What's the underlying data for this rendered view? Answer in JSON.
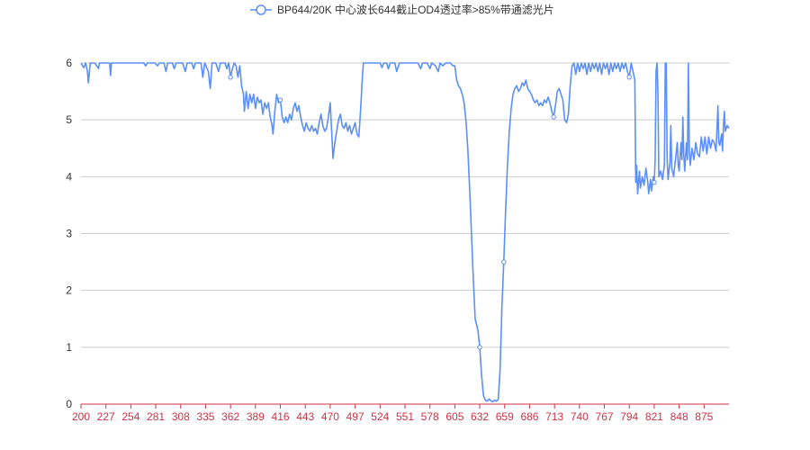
{
  "chart_data": {
    "type": "line",
    "title": "",
    "xlabel": "",
    "ylabel": "",
    "legend": {
      "position": "top-center"
    },
    "grid": {
      "y": true,
      "x": false
    },
    "xlim": [
      200,
      902
    ],
    "ylim": [
      0,
      6
    ],
    "x_ticks": [
      200,
      227,
      254,
      281,
      308,
      335,
      362,
      389,
      416,
      443,
      470,
      497,
      524,
      551,
      578,
      605,
      632,
      659,
      686,
      713,
      740,
      767,
      794,
      821,
      848,
      875
    ],
    "y_ticks": [
      0,
      1,
      2,
      3,
      4,
      5,
      6
    ],
    "colors": {
      "series": "#5b8ff9",
      "x_axis": "#cc3344",
      "grid": "#cccccc",
      "text": "#333333"
    },
    "series": [
      {
        "name": "BP644/20K 中心波长644截止OD4透过率>85%带通滤光片",
        "marker_x": [
          362,
          416,
          632,
          659,
          713,
          794,
          821
        ],
        "points": [
          [
            200,
            6.0
          ],
          [
            203,
            5.92
          ],
          [
            205,
            6.0
          ],
          [
            207,
            5.85
          ],
          [
            208,
            5.65
          ],
          [
            210,
            6.0
          ],
          [
            215,
            6.0
          ],
          [
            219,
            5.9
          ],
          [
            220,
            6.0
          ],
          [
            225,
            6.0
          ],
          [
            231,
            6.0
          ],
          [
            232,
            5.78
          ],
          [
            233,
            6.0
          ],
          [
            245,
            6.0
          ],
          [
            268,
            6.0
          ],
          [
            270,
            5.95
          ],
          [
            272,
            6.0
          ],
          [
            280,
            6.0
          ],
          [
            283,
            5.95
          ],
          [
            285,
            6.0
          ],
          [
            290,
            6.0
          ],
          [
            292,
            5.85
          ],
          [
            294,
            6.0
          ],
          [
            299,
            6.0
          ],
          [
            301,
            5.9
          ],
          [
            303,
            6.0
          ],
          [
            310,
            6.0
          ],
          [
            313,
            5.85
          ],
          [
            315,
            6.0
          ],
          [
            320,
            6.0
          ],
          [
            322,
            5.9
          ],
          [
            324,
            6.0
          ],
          [
            330,
            6.0
          ],
          [
            332,
            5.75
          ],
          [
            334,
            6.0
          ],
          [
            338,
            5.85
          ],
          [
            340,
            5.55
          ],
          [
            342,
            6.0
          ],
          [
            346,
            6.0
          ],
          [
            349,
            5.85
          ],
          [
            351,
            6.0
          ],
          [
            356,
            6.0
          ],
          [
            358,
            5.9
          ],
          [
            360,
            6.0
          ],
          [
            362,
            5.75
          ],
          [
            364,
            5.9
          ],
          [
            366,
            6.0
          ],
          [
            368,
            5.95
          ],
          [
            370,
            5.75
          ],
          [
            372,
            5.95
          ],
          [
            374,
            5.6
          ],
          [
            376,
            5.45
          ],
          [
            377,
            5.15
          ],
          [
            379,
            5.5
          ],
          [
            381,
            5.2
          ],
          [
            383,
            5.45
          ],
          [
            385,
            5.3
          ],
          [
            387,
            5.45
          ],
          [
            389,
            5.2
          ],
          [
            391,
            5.4
          ],
          [
            393,
            5.3
          ],
          [
            395,
            5.35
          ],
          [
            397,
            5.1
          ],
          [
            399,
            5.3
          ],
          [
            401,
            5.2
          ],
          [
            403,
            5.3
          ],
          [
            405,
            5.05
          ],
          [
            407,
            4.9
          ],
          [
            408,
            4.75
          ],
          [
            410,
            5.15
          ],
          [
            412,
            5.45
          ],
          [
            414,
            5.3
          ],
          [
            416,
            5.35
          ],
          [
            418,
            5.05
          ],
          [
            420,
            4.95
          ],
          [
            422,
            5.05
          ],
          [
            424,
            4.95
          ],
          [
            426,
            5.1
          ],
          [
            428,
            5.0
          ],
          [
            430,
            5.2
          ],
          [
            432,
            5.3
          ],
          [
            434,
            5.15
          ],
          [
            436,
            5.25
          ],
          [
            438,
            5.05
          ],
          [
            440,
            4.9
          ],
          [
            442,
            4.8
          ],
          [
            444,
            4.95
          ],
          [
            446,
            4.85
          ],
          [
            448,
            4.8
          ],
          [
            450,
            4.9
          ],
          [
            452,
            4.8
          ],
          [
            454,
            4.85
          ],
          [
            456,
            4.75
          ],
          [
            458,
            4.95
          ],
          [
            460,
            5.1
          ],
          [
            462,
            4.9
          ],
          [
            464,
            4.8
          ],
          [
            466,
            4.85
          ],
          [
            468,
            5.05
          ],
          [
            470,
            5.3
          ],
          [
            472,
            4.65
          ],
          [
            473,
            4.32
          ],
          [
            475,
            4.6
          ],
          [
            477,
            4.8
          ],
          [
            479,
            5.0
          ],
          [
            481,
            5.1
          ],
          [
            483,
            4.9
          ],
          [
            485,
            4.85
          ],
          [
            487,
            4.95
          ],
          [
            489,
            4.8
          ],
          [
            491,
            4.9
          ],
          [
            493,
            4.75
          ],
          [
            495,
            4.85
          ],
          [
            497,
            4.95
          ],
          [
            499,
            4.75
          ],
          [
            501,
            4.7
          ],
          [
            503,
            5.2
          ],
          [
            505,
            5.8
          ],
          [
            506,
            6.0
          ],
          [
            515,
            6.0
          ],
          [
            520,
            6.0
          ],
          [
            524,
            6.0
          ],
          [
            526,
            5.92
          ],
          [
            528,
            6.0
          ],
          [
            531,
            6.0
          ],
          [
            533,
            5.9
          ],
          [
            535,
            6.0
          ],
          [
            540,
            6.0
          ],
          [
            542,
            5.85
          ],
          [
            545,
            6.0
          ],
          [
            555,
            6.0
          ],
          [
            565,
            6.0
          ],
          [
            568,
            5.9
          ],
          [
            570,
            6.0
          ],
          [
            575,
            6.0
          ],
          [
            578,
            5.9
          ],
          [
            580,
            6.0
          ],
          [
            584,
            5.95
          ],
          [
            587,
            5.85
          ],
          [
            589,
            6.0
          ],
          [
            592,
            5.95
          ],
          [
            595,
            6.0
          ],
          [
            600,
            6.0
          ],
          [
            603,
            5.95
          ],
          [
            605,
            5.95
          ],
          [
            607,
            5.7
          ],
          [
            609,
            5.6
          ],
          [
            611,
            5.55
          ],
          [
            613,
            5.45
          ],
          [
            615,
            5.3
          ],
          [
            617,
            5.0
          ],
          [
            619,
            4.5
          ],
          [
            621,
            3.8
          ],
          [
            623,
            3.0
          ],
          [
            625,
            2.2
          ],
          [
            627,
            1.5
          ],
          [
            630,
            1.3
          ],
          [
            632,
            1.0
          ],
          [
            634,
            0.5
          ],
          [
            636,
            0.15
          ],
          [
            638,
            0.07
          ],
          [
            640,
            0.05
          ],
          [
            642,
            0.09
          ],
          [
            644,
            0.06
          ],
          [
            646,
            0.04
          ],
          [
            648,
            0.07
          ],
          [
            650,
            0.05
          ],
          [
            652,
            0.08
          ],
          [
            654,
            0.6
          ],
          [
            656,
            1.7
          ],
          [
            658,
            2.5
          ],
          [
            660,
            3.4
          ],
          [
            662,
            4.2
          ],
          [
            664,
            4.8
          ],
          [
            666,
            5.2
          ],
          [
            668,
            5.45
          ],
          [
            670,
            5.55
          ],
          [
            672,
            5.6
          ],
          [
            674,
            5.5
          ],
          [
            676,
            5.55
          ],
          [
            678,
            5.65
          ],
          [
            680,
            5.6
          ],
          [
            682,
            5.7
          ],
          [
            684,
            5.55
          ],
          [
            686,
            5.5
          ],
          [
            688,
            5.45
          ],
          [
            690,
            5.35
          ],
          [
            692,
            5.3
          ],
          [
            694,
            5.35
          ],
          [
            696,
            5.25
          ],
          [
            698,
            5.3
          ],
          [
            700,
            5.25
          ],
          [
            702,
            5.35
          ],
          [
            704,
            5.3
          ],
          [
            706,
            5.4
          ],
          [
            708,
            5.3
          ],
          [
            710,
            5.15
          ],
          [
            712,
            5.05
          ],
          [
            714,
            5.25
          ],
          [
            716,
            5.5
          ],
          [
            718,
            5.55
          ],
          [
            720,
            5.45
          ],
          [
            722,
            5.35
          ],
          [
            724,
            5.0
          ],
          [
            726,
            4.95
          ],
          [
            728,
            5.1
          ],
          [
            730,
            5.6
          ],
          [
            732,
            5.95
          ],
          [
            734,
            6.0
          ],
          [
            736,
            5.8
          ],
          [
            738,
            6.0
          ],
          [
            740,
            5.85
          ],
          [
            742,
            6.0
          ],
          [
            744,
            5.9
          ],
          [
            746,
            6.0
          ],
          [
            748,
            5.8
          ],
          [
            750,
            6.0
          ],
          [
            752,
            5.85
          ],
          [
            754,
            6.0
          ],
          [
            756,
            5.9
          ],
          [
            758,
            6.0
          ],
          [
            760,
            5.85
          ],
          [
            762,
            6.0
          ],
          [
            764,
            5.8
          ],
          [
            766,
            6.0
          ],
          [
            768,
            5.9
          ],
          [
            770,
            6.0
          ],
          [
            772,
            5.8
          ],
          [
            774,
            6.0
          ],
          [
            776,
            5.85
          ],
          [
            778,
            6.0
          ],
          [
            780,
            5.9
          ],
          [
            782,
            6.0
          ],
          [
            784,
            5.85
          ],
          [
            786,
            6.0
          ],
          [
            788,
            5.9
          ],
          [
            790,
            6.0
          ],
          [
            792,
            5.85
          ],
          [
            794,
            5.75
          ],
          [
            796,
            6.0
          ],
          [
            798,
            5.85
          ],
          [
            800,
            5.7
          ],
          [
            801,
            3.9
          ],
          [
            802,
            4.2
          ],
          [
            803,
            3.7
          ],
          [
            805,
            4.1
          ],
          [
            806,
            3.8
          ],
          [
            808,
            4.0
          ],
          [
            810,
            3.85
          ],
          [
            812,
            4.15
          ],
          [
            814,
            3.9
          ],
          [
            815,
            3.7
          ],
          [
            817,
            3.95
          ],
          [
            818,
            3.75
          ],
          [
            820,
            4.0
          ],
          [
            821,
            3.9
          ],
          [
            822,
            4.3
          ],
          [
            823,
            5.85
          ],
          [
            824,
            6.0
          ],
          [
            825,
            5.5
          ],
          [
            826,
            4.0
          ],
          [
            828,
            4.1
          ],
          [
            830,
            3.95
          ],
          [
            832,
            4.2
          ],
          [
            833,
            6.0
          ],
          [
            834,
            6.0
          ],
          [
            835,
            4.3
          ],
          [
            836,
            3.95
          ],
          [
            838,
            4.25
          ],
          [
            839,
            4.9
          ],
          [
            840,
            4.15
          ],
          [
            842,
            4.0
          ],
          [
            844,
            4.3
          ],
          [
            846,
            4.6
          ],
          [
            847,
            4.2
          ],
          [
            848,
            4.1
          ],
          [
            850,
            4.6
          ],
          [
            851,
            4.3
          ],
          [
            852,
            5.05
          ],
          [
            853,
            4.4
          ],
          [
            854,
            4.1
          ],
          [
            856,
            4.6
          ],
          [
            857,
            4.3
          ],
          [
            858,
            6.0
          ],
          [
            859,
            4.5
          ],
          [
            860,
            4.2
          ],
          [
            862,
            4.5
          ],
          [
            864,
            4.3
          ],
          [
            866,
            4.6
          ],
          [
            868,
            4.4
          ],
          [
            870,
            4.35
          ],
          [
            872,
            4.7
          ],
          [
            874,
            4.45
          ],
          [
            876,
            4.7
          ],
          [
            878,
            4.4
          ],
          [
            880,
            4.7
          ],
          [
            882,
            4.5
          ],
          [
            884,
            4.65
          ],
          [
            886,
            4.6
          ],
          [
            888,
            4.45
          ],
          [
            890,
            5.25
          ],
          [
            891,
            4.6
          ],
          [
            892,
            4.55
          ],
          [
            894,
            4.75
          ],
          [
            895,
            4.45
          ],
          [
            896,
            4.9
          ],
          [
            897,
            5.15
          ],
          [
            898,
            4.8
          ],
          [
            900,
            4.9
          ],
          [
            902,
            4.85
          ]
        ]
      }
    ]
  }
}
